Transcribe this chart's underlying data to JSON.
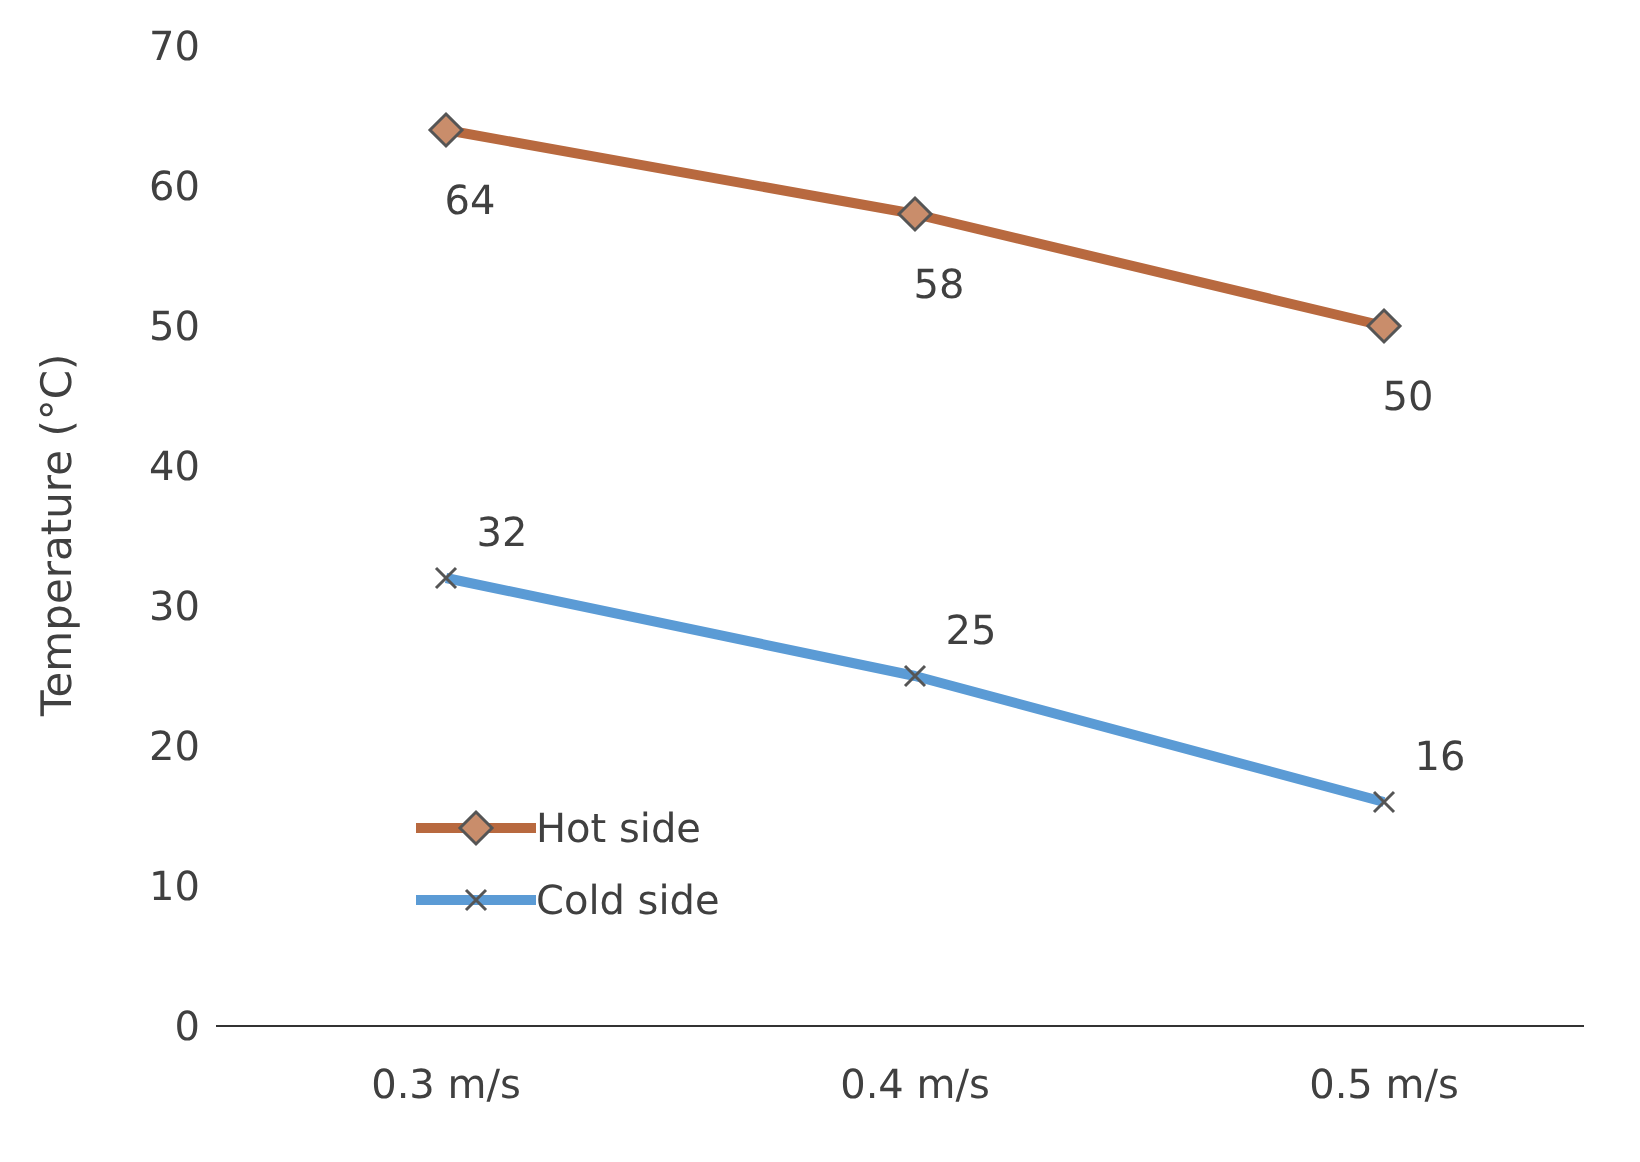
{
  "chart_data": {
    "type": "line",
    "ylabel": "Temperature (°C)",
    "categories": [
      "0.3 m/s",
      "0.4 m/s",
      "0.5 m/s"
    ],
    "series": [
      {
        "name": "Hot side",
        "color": "#b8693f",
        "values": [
          64,
          58,
          50
        ],
        "marker": "diamond"
      },
      {
        "name": "Cold side",
        "color": "#5b9bd5",
        "values": [
          32,
          25,
          16
        ],
        "marker": "cross"
      }
    ],
    "ylim": [
      0,
      70
    ],
    "yticks": [
      0,
      10,
      20,
      30,
      40,
      50,
      60,
      70
    ],
    "grid": false,
    "legend": "bottom left",
    "data_labels": true
  }
}
